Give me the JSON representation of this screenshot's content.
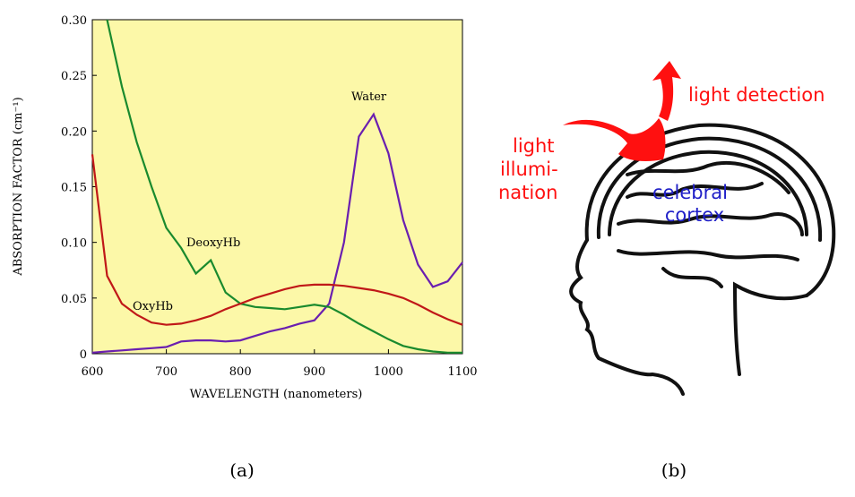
{
  "chart_data": {
    "type": "line",
    "xlabel": "WAVELENGTH (nanometers)",
    "ylabel": "ABSORPTION FACTOR (cm⁻¹)",
    "background": "#fcf8a8",
    "x": [
      600,
      620,
      640,
      660,
      680,
      700,
      720,
      740,
      760,
      780,
      800,
      820,
      840,
      860,
      880,
      900,
      920,
      940,
      960,
      980,
      1000,
      1020,
      1040,
      1060,
      1080,
      1100
    ],
    "series": [
      {
        "name": "Water",
        "color": "#6a1fb0",
        "values": [
          0.001,
          0.002,
          0.003,
          0.004,
          0.005,
          0.006,
          0.011,
          0.012,
          0.012,
          0.011,
          0.012,
          0.016,
          0.02,
          0.023,
          0.027,
          0.03,
          0.045,
          0.1,
          0.195,
          0.215,
          0.18,
          0.12,
          0.08,
          0.06,
          0.065,
          0.082
        ]
      },
      {
        "name": "DeoxyHb",
        "color": "#1a8a2e",
        "values": [
          null,
          0.3,
          0.24,
          0.19,
          0.15,
          0.113,
          0.095,
          0.072,
          0.084,
          0.055,
          0.045,
          0.042,
          0.041,
          0.04,
          0.042,
          0.044,
          0.042,
          0.035,
          0.027,
          0.02,
          0.013,
          0.007,
          0.004,
          0.002,
          0.001,
          0.001
        ]
      },
      {
        "name": "OxyHb",
        "color": "#c01818",
        "values": [
          0.179,
          0.07,
          0.045,
          0.035,
          0.028,
          0.026,
          0.027,
          0.03,
          0.034,
          0.04,
          0.045,
          0.05,
          0.054,
          0.058,
          0.061,
          0.062,
          0.062,
          0.061,
          0.059,
          0.057,
          0.054,
          0.05,
          0.044,
          0.037,
          0.031,
          0.026
        ]
      }
    ],
    "xlim": [
      600,
      1100
    ],
    "xticks": [
      600,
      700,
      800,
      900,
      1000,
      1100
    ],
    "ylim": [
      0,
      0.3
    ],
    "yticks": [
      0,
      0.05,
      {
        "value": 0.1,
        "label": "0.10"
      },
      0.15,
      {
        "value": 0.2,
        "label": "0.20"
      },
      0.25,
      {
        "value": 0.3,
        "label": "0.30"
      }
    ]
  },
  "figure": {
    "captions": [
      "(a)",
      "(b)"
    ],
    "diagram": {
      "labels": [
        "light detection",
        "light",
        "illumi-",
        "nation",
        "celebral",
        "cortex"
      ]
    }
  }
}
